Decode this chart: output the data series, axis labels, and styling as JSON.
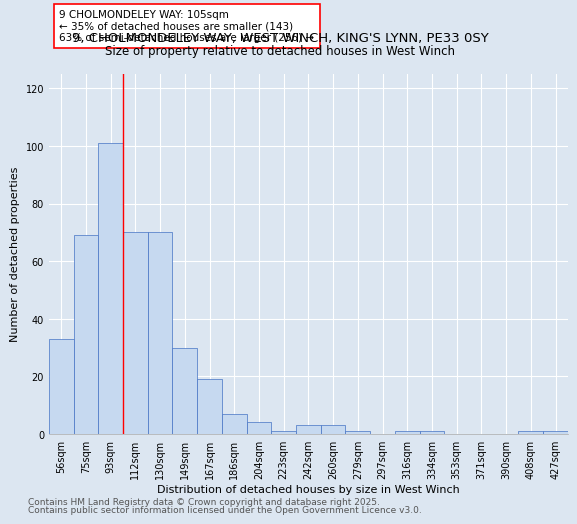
{
  "title": "9, CHOLMONDELEY WAY, WEST WINCH, KING'S LYNN, PE33 0SY",
  "subtitle": "Size of property relative to detached houses in West Winch",
  "xlabel": "Distribution of detached houses by size in West Winch",
  "ylabel": "Number of detached properties",
  "categories": [
    "56sqm",
    "75sqm",
    "93sqm",
    "112sqm",
    "130sqm",
    "149sqm",
    "167sqm",
    "186sqm",
    "204sqm",
    "223sqm",
    "242sqm",
    "260sqm",
    "279sqm",
    "297sqm",
    "316sqm",
    "334sqm",
    "353sqm",
    "371sqm",
    "390sqm",
    "408sqm",
    "427sqm"
  ],
  "values": [
    33,
    69,
    101,
    70,
    70,
    30,
    19,
    7,
    4,
    1,
    3,
    3,
    1,
    0,
    1,
    1,
    0,
    0,
    0,
    1,
    1
  ],
  "bar_color": "#c6d9f0",
  "bar_edge_color": "#4472c4",
  "background_color": "#dce6f1",
  "red_line_index": 2,
  "annotation_text": "9 CHOLMONDELEY WAY: 105sqm\n← 35% of detached houses are smaller (143)\n63% of semi-detached houses are larger (256) →",
  "annotation_box_color": "#ffffff",
  "annotation_border_color": "#ff0000",
  "ylim": [
    0,
    125
  ],
  "yticks": [
    0,
    20,
    40,
    60,
    80,
    100,
    120
  ],
  "footnote1": "Contains HM Land Registry data © Crown copyright and database right 2025.",
  "footnote2": "Contains public sector information licensed under the Open Government Licence v3.0.",
  "title_fontsize": 9.5,
  "subtitle_fontsize": 8.5,
  "axis_fontsize": 8,
  "tick_fontsize": 7,
  "annotation_fontsize": 7.5,
  "footnote_fontsize": 6.5
}
